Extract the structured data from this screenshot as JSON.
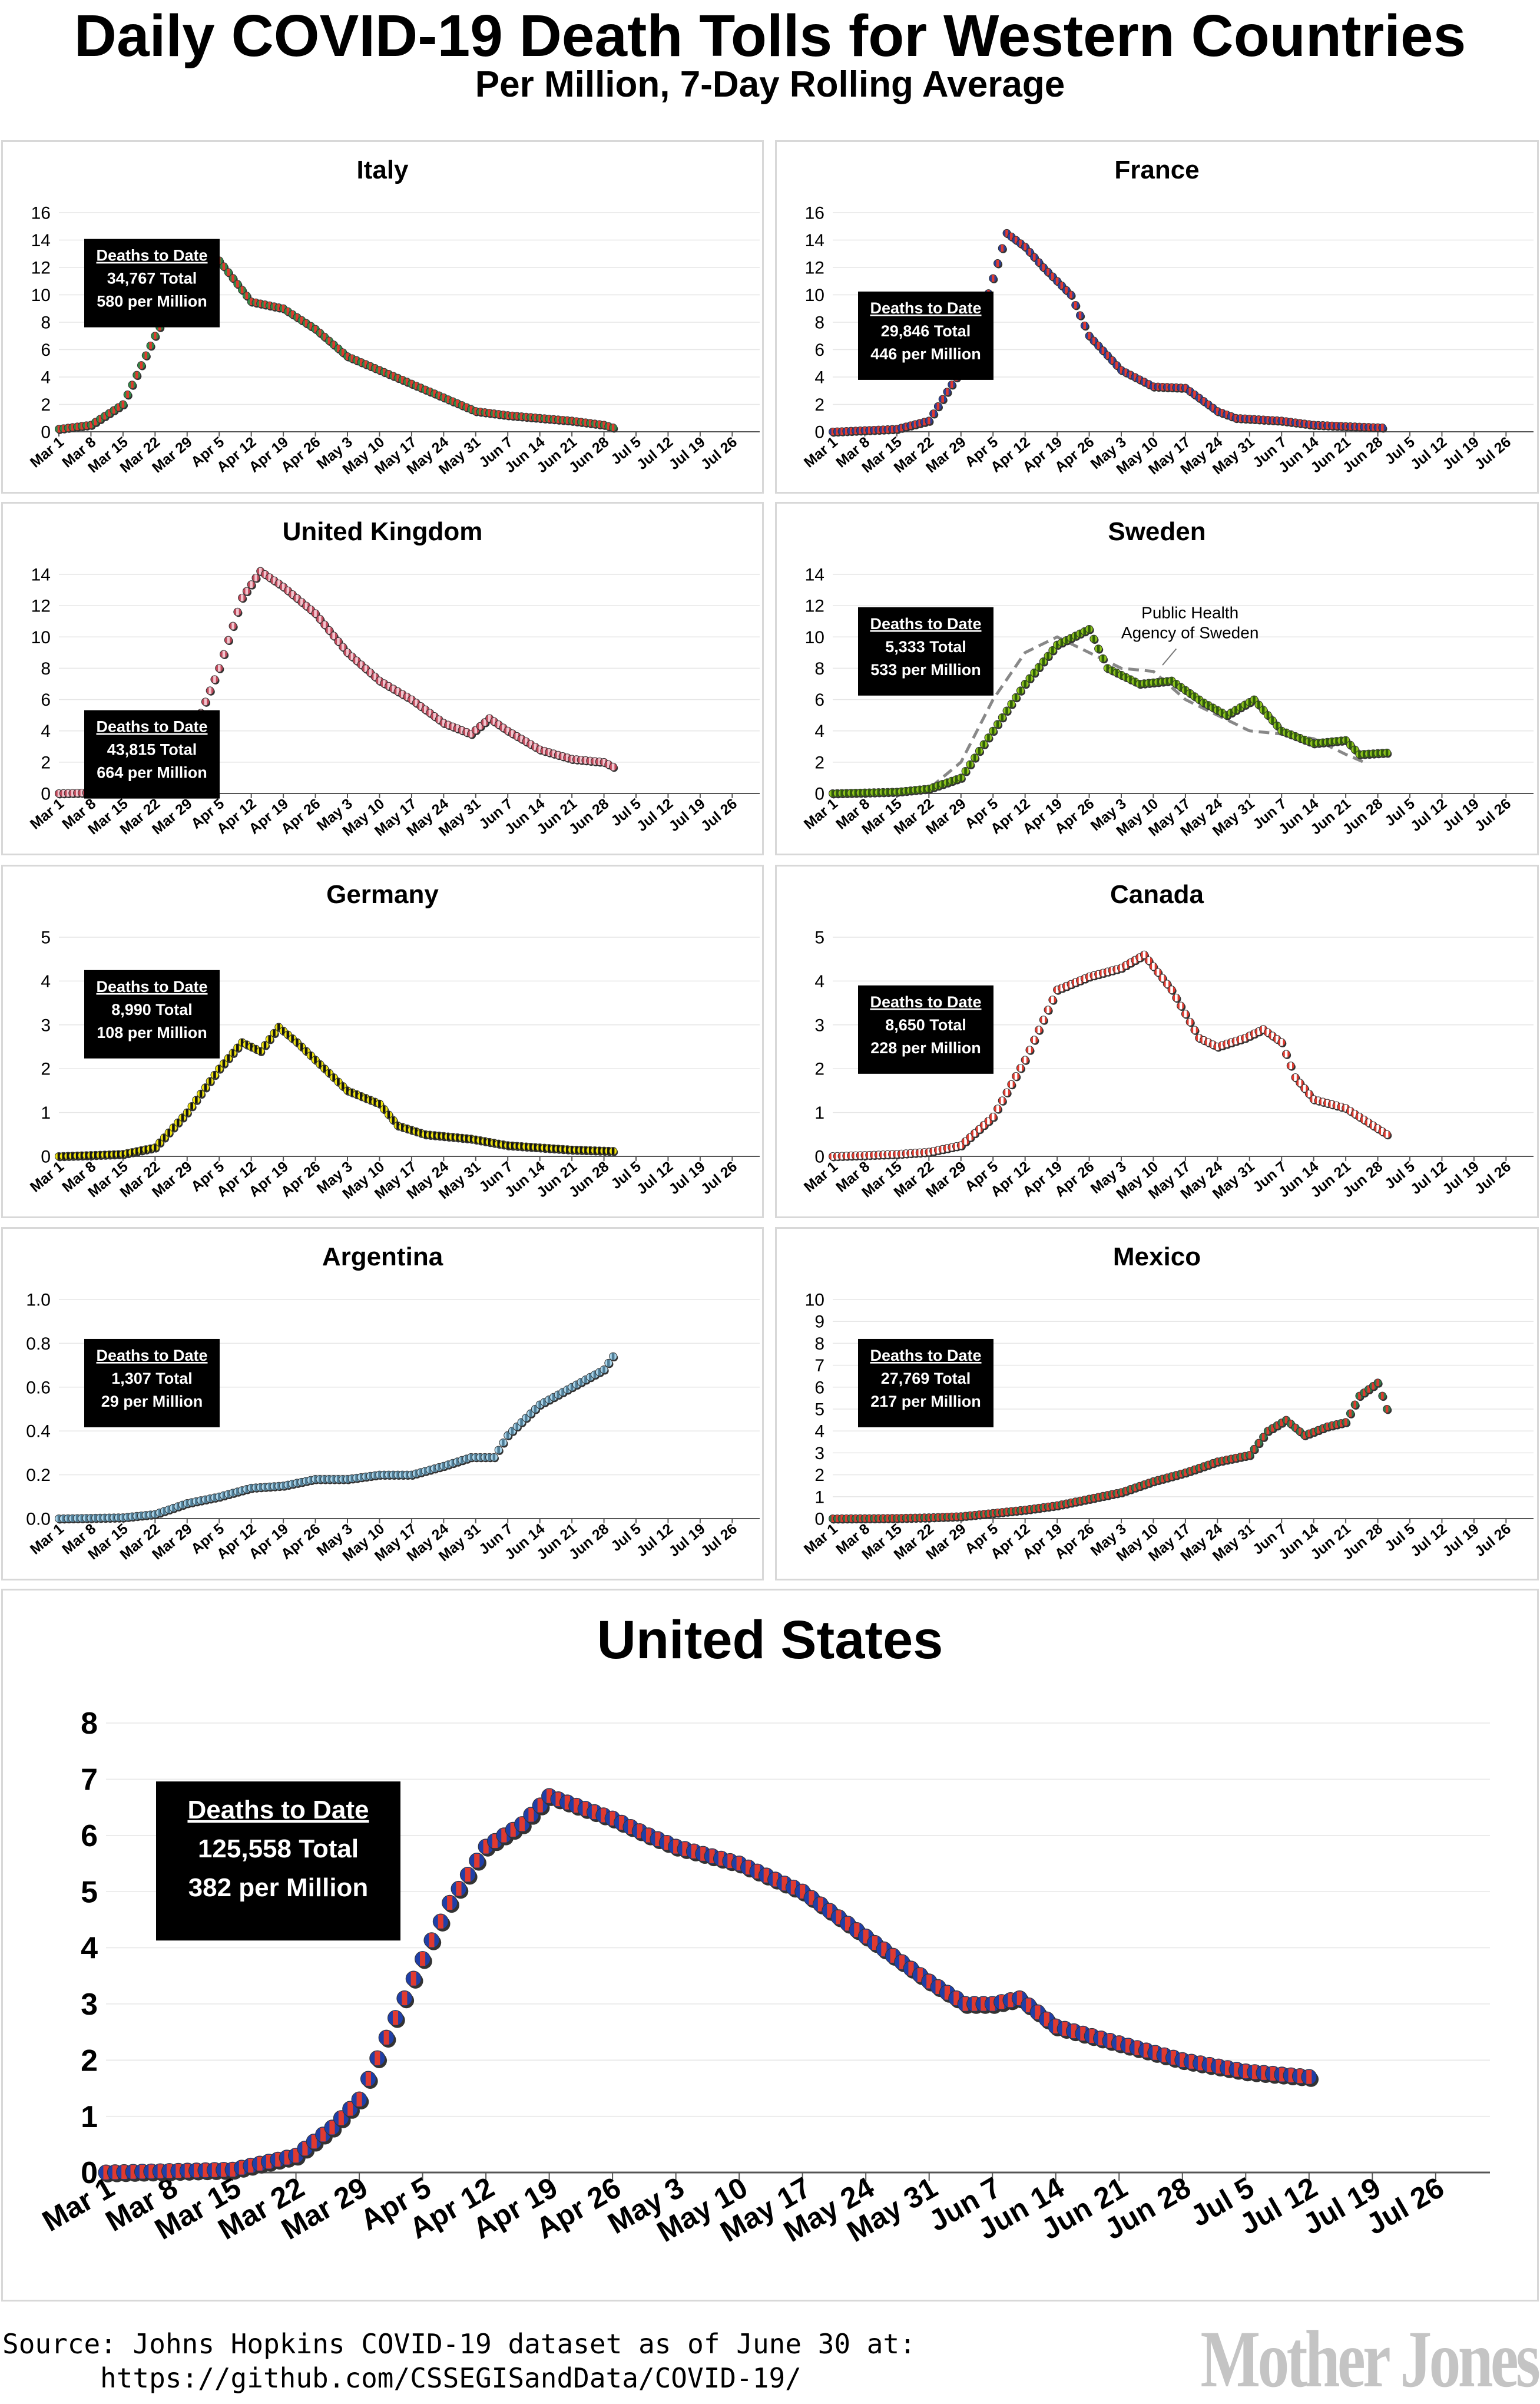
{
  "page": {
    "title": "Daily COVID-19 Death Tolls for Western Countries",
    "subtitle": "Per Million, 7-Day Rolling Average",
    "source_line1": "Source: Johns Hopkins COVID-19 dataset as of June 30 at:",
    "source_line2": "https://github.com/CSSEGISandData/COVID-19/",
    "logo": "Mother Jones"
  },
  "box_heading": "Deaths to Date",
  "x_tick_labels": [
    "Mar 1",
    "Mar 8",
    "Mar 15",
    "Mar 22",
    "Mar 29",
    "Apr 5",
    "Apr 12",
    "Apr 19",
    "Apr 26",
    "May 3",
    "May 10",
    "May 17",
    "May 24",
    "May 31",
    "Jun 7",
    "Jun 14",
    "Jun 21",
    "Jun 28",
    "Jul 5",
    "Jul 12",
    "Jul 19",
    "Jul 26"
  ],
  "chart_data": [
    {
      "type": "scatter",
      "title": "Italy",
      "x_start": "Mar 1",
      "x_end": "Aug 1",
      "ylim": [
        0,
        16
      ],
      "yticks": [
        0,
        2,
        4,
        6,
        8,
        10,
        12,
        14,
        16
      ],
      "ydecimals": 0,
      "colors": [
        "#2e8b46",
        "#e03a2f"
      ],
      "summary": {
        "total": "34,767 Total",
        "per_million": "580 per Million"
      },
      "knots": [
        [
          0,
          0.2
        ],
        [
          7,
          0.5
        ],
        [
          14,
          2
        ],
        [
          21,
          7
        ],
        [
          28,
          11.5
        ],
        [
          35,
          12.5
        ],
        [
          42,
          9.5
        ],
        [
          49,
          9
        ],
        [
          56,
          7.5
        ],
        [
          63,
          5.5
        ],
        [
          70,
          4.5
        ],
        [
          77,
          3.5
        ],
        [
          84,
          2.5
        ],
        [
          91,
          1.5
        ],
        [
          98,
          1.2
        ],
        [
          105,
          1
        ],
        [
          112,
          0.8
        ],
        [
          119,
          0.5
        ],
        [
          121,
          0.3
        ]
      ]
    },
    {
      "type": "scatter",
      "title": "France",
      "x_start": "Mar 1",
      "x_end": "Aug 1",
      "ylim": [
        0,
        16
      ],
      "yticks": [
        0,
        2,
        4,
        6,
        8,
        10,
        12,
        14,
        16
      ],
      "ydecimals": 0,
      "colors": [
        "#2b3f9a",
        "#e03a2f"
      ],
      "summary": {
        "total": "29,846 Total",
        "per_million": "446 per Million"
      },
      "knots": [
        [
          0,
          0
        ],
        [
          14,
          0.2
        ],
        [
          21,
          0.8
        ],
        [
          28,
          4.5
        ],
        [
          33,
          9
        ],
        [
          38,
          14.5
        ],
        [
          42,
          13.5
        ],
        [
          46,
          12
        ],
        [
          52,
          10
        ],
        [
          56,
          7
        ],
        [
          63,
          4.5
        ],
        [
          70,
          3.3
        ],
        [
          77,
          3.2
        ],
        [
          84,
          1.5
        ],
        [
          88,
          1
        ],
        [
          98,
          0.8
        ],
        [
          105,
          0.5
        ],
        [
          112,
          0.4
        ],
        [
          120,
          0.3
        ]
      ]
    },
    {
      "type": "scatter",
      "title": "United Kingdom",
      "x_start": "Mar 1",
      "x_end": "Aug 1",
      "ylim": [
        0,
        14
      ],
      "yticks": [
        0,
        2,
        4,
        6,
        8,
        10,
        12,
        14
      ],
      "ydecimals": 0,
      "colors": [
        "#c0485a",
        "#f2c6cf"
      ],
      "summary": {
        "total": "43,815 Total",
        "per_million": "664 per Million"
      },
      "knots": [
        [
          0,
          0
        ],
        [
          14,
          0.1
        ],
        [
          21,
          0.6
        ],
        [
          28,
          3
        ],
        [
          35,
          8
        ],
        [
          40,
          12.5
        ],
        [
          44,
          14.2
        ],
        [
          49,
          13.2
        ],
        [
          56,
          11.5
        ],
        [
          63,
          9
        ],
        [
          70,
          7.2
        ],
        [
          77,
          6
        ],
        [
          84,
          4.5
        ],
        [
          90,
          3.8
        ],
        [
          94,
          4.8
        ],
        [
          98,
          4
        ],
        [
          105,
          2.8
        ],
        [
          112,
          2.2
        ],
        [
          119,
          2
        ],
        [
          121,
          1.7
        ]
      ]
    },
    {
      "type": "scatter",
      "title": "Sweden",
      "x_start": "Mar 1",
      "x_end": "Aug 1",
      "ylim": [
        0,
        14
      ],
      "yticks": [
        0,
        2,
        4,
        6,
        8,
        10,
        12,
        14
      ],
      "ydecimals": 0,
      "colors": [
        "#8cc41c",
        "#2f5d0a"
      ],
      "summary": {
        "total": "5,333 Total",
        "per_million": "533 per Million"
      },
      "annotation": [
        "Public Health",
        "Agency of Sweden"
      ],
      "knots": [
        [
          0,
          0
        ],
        [
          14,
          0.1
        ],
        [
          21,
          0.3
        ],
        [
          28,
          1
        ],
        [
          35,
          4
        ],
        [
          42,
          7
        ],
        [
          49,
          9.5
        ],
        [
          56,
          10.5
        ],
        [
          60,
          8
        ],
        [
          67,
          7
        ],
        [
          74,
          7.2
        ],
        [
          81,
          5.8
        ],
        [
          86,
          5
        ],
        [
          92,
          6
        ],
        [
          98,
          4
        ],
        [
          105,
          3.2
        ],
        [
          112,
          3.4
        ],
        [
          115,
          2.5
        ],
        [
          121,
          2.6
        ]
      ],
      "reference_line": [
        [
          0,
          0
        ],
        [
          21,
          0.3
        ],
        [
          28,
          2
        ],
        [
          35,
          6
        ],
        [
          42,
          9
        ],
        [
          49,
          10
        ],
        [
          56,
          9
        ],
        [
          63,
          8
        ],
        [
          70,
          7.8
        ],
        [
          77,
          6
        ],
        [
          84,
          5
        ],
        [
          91,
          4
        ],
        [
          98,
          3.8
        ],
        [
          105,
          3.5
        ],
        [
          112,
          2.5
        ],
        [
          116,
          2
        ]
      ]
    },
    {
      "type": "scatter",
      "title": "Germany",
      "x_start": "Mar 1",
      "x_end": "Aug 1",
      "ylim": [
        0,
        5
      ],
      "yticks": [
        0,
        1,
        2,
        3,
        4,
        5
      ],
      "ydecimals": 0,
      "colors": [
        "#f0e40c",
        "#141414"
      ],
      "summary": {
        "total": "8,990 Total",
        "per_million": "108 per Million"
      },
      "knots": [
        [
          0,
          0
        ],
        [
          14,
          0.05
        ],
        [
          21,
          0.2
        ],
        [
          28,
          1
        ],
        [
          35,
          2
        ],
        [
          40,
          2.6
        ],
        [
          44,
          2.4
        ],
        [
          48,
          2.95
        ],
        [
          52,
          2.6
        ],
        [
          56,
          2.2
        ],
        [
          63,
          1.5
        ],
        [
          70,
          1.2
        ],
        [
          74,
          0.7
        ],
        [
          80,
          0.5
        ],
        [
          90,
          0.4
        ],
        [
          98,
          0.25
        ],
        [
          105,
          0.2
        ],
        [
          112,
          0.15
        ],
        [
          121,
          0.12
        ]
      ]
    },
    {
      "type": "scatter",
      "title": "Canada",
      "x_start": "Mar 1",
      "x_end": "Aug 1",
      "ylim": [
        0,
        5
      ],
      "yticks": [
        0,
        1,
        2,
        3,
        4,
        5
      ],
      "ydecimals": 0,
      "colors": [
        "#e03a2f",
        "#ffffff"
      ],
      "summary": {
        "total": "8,650 Total",
        "per_million": "228 per Million"
      },
      "knots": [
        [
          0,
          0
        ],
        [
          14,
          0.05
        ],
        [
          21,
          0.1
        ],
        [
          28,
          0.25
        ],
        [
          35,
          0.9
        ],
        [
          42,
          2.2
        ],
        [
          49,
          3.8
        ],
        [
          56,
          4.1
        ],
        [
          63,
          4.3
        ],
        [
          68,
          4.6
        ],
        [
          74,
          3.8
        ],
        [
          80,
          2.7
        ],
        [
          84,
          2.5
        ],
        [
          90,
          2.7
        ],
        [
          94,
          2.9
        ],
        [
          98,
          2.6
        ],
        [
          101,
          1.8
        ],
        [
          105,
          1.3
        ],
        [
          112,
          1.1
        ],
        [
          118,
          0.7
        ],
        [
          121,
          0.5
        ]
      ]
    },
    {
      "type": "scatter",
      "title": "Argentina",
      "x_start": "Mar 1",
      "x_end": "Aug 1",
      "ylim": [
        0,
        1
      ],
      "yticks": [
        0,
        0.2,
        0.4,
        0.6,
        0.8,
        1.0
      ],
      "ydecimals": 1,
      "colors": [
        "#a8d4ea",
        "#4f7d96"
      ],
      "summary": {
        "total": "1,307 Total",
        "per_million": "29 per Million"
      },
      "knots": [
        [
          0,
          0
        ],
        [
          14,
          0.005
        ],
        [
          21,
          0.02
        ],
        [
          28,
          0.07
        ],
        [
          35,
          0.1
        ],
        [
          42,
          0.14
        ],
        [
          49,
          0.15
        ],
        [
          56,
          0.18
        ],
        [
          63,
          0.18
        ],
        [
          70,
          0.2
        ],
        [
          77,
          0.2
        ],
        [
          84,
          0.24
        ],
        [
          90,
          0.28
        ],
        [
          95,
          0.28
        ],
        [
          98,
          0.38
        ],
        [
          105,
          0.52
        ],
        [
          112,
          0.6
        ],
        [
          119,
          0.68
        ],
        [
          121,
          0.74
        ]
      ]
    },
    {
      "type": "scatter",
      "title": "Mexico",
      "x_start": "Mar 1",
      "x_end": "Aug 1",
      "ylim": [
        0,
        10
      ],
      "yticks": [
        0,
        1,
        2,
        3,
        4,
        5,
        6,
        7,
        8,
        9,
        10
      ],
      "ydecimals": 0,
      "colors": [
        "#2e7a4a",
        "#e03a2f"
      ],
      "summary": {
        "total": "27,769 Total",
        "per_million": "217 per Million"
      },
      "knots": [
        [
          0,
          0
        ],
        [
          14,
          0.02
        ],
        [
          21,
          0.05
        ],
        [
          28,
          0.1
        ],
        [
          35,
          0.25
        ],
        [
          42,
          0.4
        ],
        [
          49,
          0.6
        ],
        [
          56,
          0.9
        ],
        [
          63,
          1.2
        ],
        [
          70,
          1.7
        ],
        [
          77,
          2.1
        ],
        [
          84,
          2.6
        ],
        [
          91,
          2.9
        ],
        [
          95,
          4
        ],
        [
          99,
          4.5
        ],
        [
          103,
          3.8
        ],
        [
          108,
          4.2
        ],
        [
          112,
          4.4
        ],
        [
          115,
          5.6
        ],
        [
          119,
          6.2
        ],
        [
          121,
          5
        ]
      ]
    },
    {
      "type": "scatter",
      "title": "United States",
      "x_start": "Mar 1",
      "x_end": "Aug 1",
      "ylim": [
        0,
        8
      ],
      "yticks": [
        0,
        1,
        2,
        3,
        4,
        5,
        6,
        7,
        8
      ],
      "ydecimals": 0,
      "colors": [
        "#1f3fa8",
        "#e03a2f"
      ],
      "summary": {
        "total": "125,558 Total",
        "per_million": "382 per Million"
      },
      "knots": [
        [
          0,
          0
        ],
        [
          14,
          0.05
        ],
        [
          21,
          0.3
        ],
        [
          25,
          0.8
        ],
        [
          28,
          1.3
        ],
        [
          31,
          2.4
        ],
        [
          35,
          3.8
        ],
        [
          38,
          4.8
        ],
        [
          42,
          5.8
        ],
        [
          46,
          6.2
        ],
        [
          49,
          6.7
        ],
        [
          56,
          6.3
        ],
        [
          60,
          6
        ],
        [
          63,
          5.8
        ],
        [
          70,
          5.5
        ],
        [
          77,
          5
        ],
        [
          84,
          4.2
        ],
        [
          91,
          3.4
        ],
        [
          95,
          3
        ],
        [
          98,
          3
        ],
        [
          101,
          3.1
        ],
        [
          105,
          2.6
        ],
        [
          112,
          2.3
        ],
        [
          119,
          2
        ],
        [
          126,
          1.8
        ],
        [
          133,
          1.7
        ]
      ]
    }
  ]
}
